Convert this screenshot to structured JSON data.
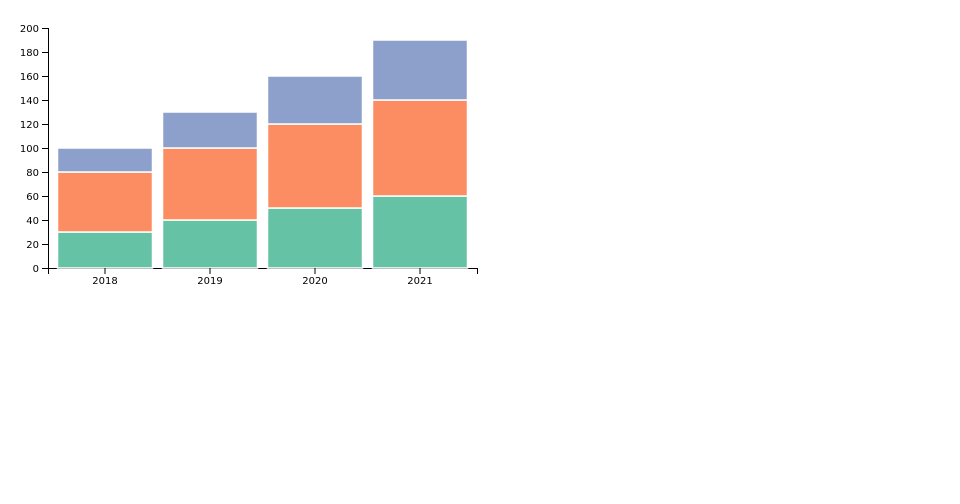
{
  "chart_data": {
    "type": "stacked_bar",
    "categories": [
      "2018",
      "2019",
      "2020",
      "2021"
    ],
    "series": [
      {
        "color": "#66c2a5",
        "values": [
          30,
          40,
          50,
          60
        ]
      },
      {
        "color": "#fc8d62",
        "values": [
          50,
          60,
          70,
          80
        ]
      },
      {
        "color": "#8da0cb",
        "values": [
          20,
          30,
          40,
          50
        ]
      }
    ],
    "ylim": [
      0,
      200
    ],
    "yticks": [
      0,
      20,
      40,
      60,
      80,
      100,
      120,
      140,
      160,
      180,
      200
    ]
  }
}
